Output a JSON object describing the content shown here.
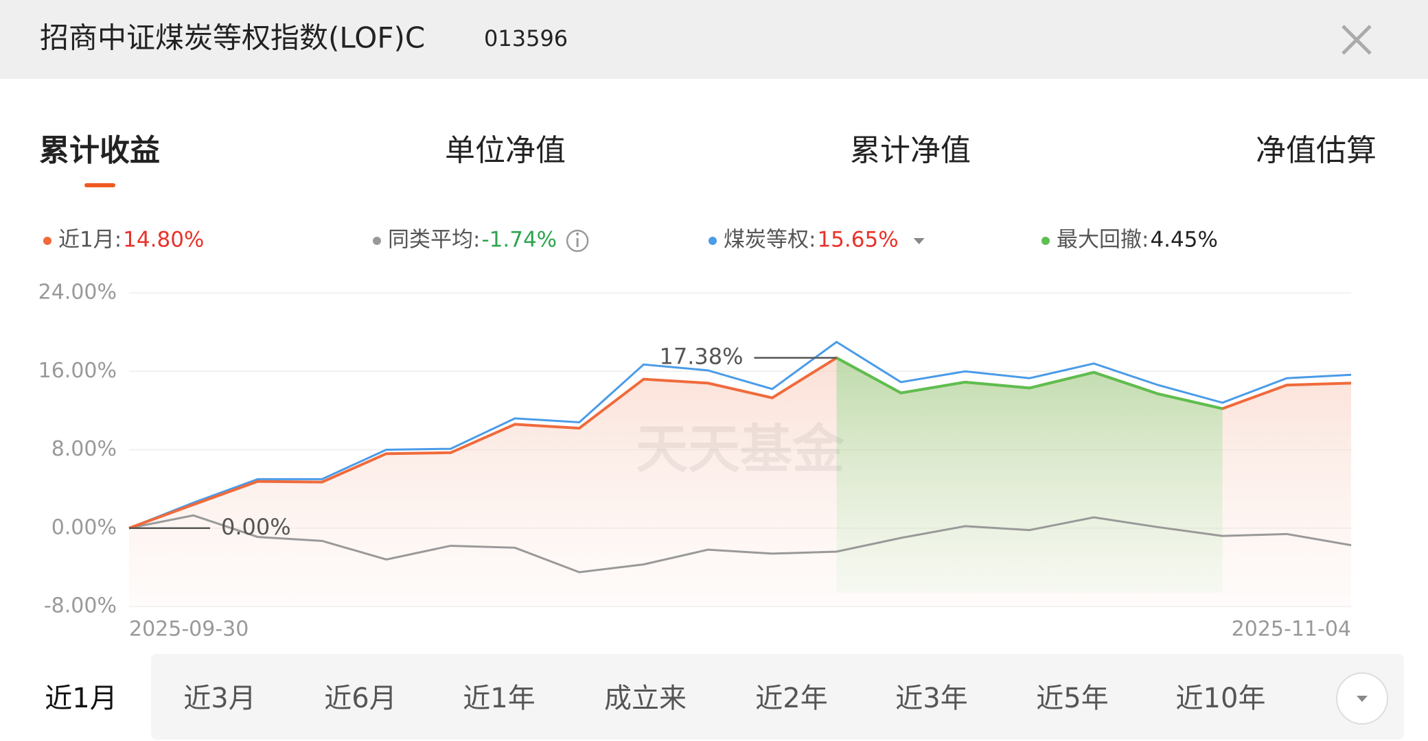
{
  "header": {
    "title": "招商中证煤炭等权指数(LOF)C",
    "code": "013596"
  },
  "tabs": [
    "累计收益",
    "单位净值",
    "累计净值",
    "净值估算"
  ],
  "chart_data": {
    "type": "line",
    "x": [
      "2025-09-30",
      null,
      null,
      null,
      null,
      null,
      null,
      null,
      null,
      null,
      null,
      null,
      null,
      null,
      null,
      null,
      null,
      null,
      null,
      "2025-11-04"
    ],
    "series": [
      {
        "name": "近1月:",
        "summary": "14.80%",
        "summary_color": "#e8322a",
        "color": "#f06a3b",
        "values": [
          0,
          2.4,
          4.77,
          4.7,
          7.6,
          7.7,
          10.6,
          10.2,
          15.2,
          14.8,
          13.3,
          17.38,
          13.8,
          14.9,
          14.3,
          15.9,
          13.7,
          12.2,
          14.6,
          14.8
        ],
        "value_labels": [
          "0.00%",
          null,
          null,
          null,
          null,
          null,
          null,
          null,
          null,
          null,
          null,
          "17.38%",
          null,
          null,
          null,
          null,
          null,
          null,
          null,
          null
        ]
      },
      {
        "name": "同类平均:",
        "summary": "-1.74%",
        "summary_color": "#2ea44f",
        "color": "#999999",
        "values": [
          0,
          1.3,
          -0.9,
          -1.3,
          -3.2,
          -1.8,
          -2.0,
          -4.5,
          -3.7,
          -2.2,
          -2.6,
          -2.4,
          -1.0,
          0.2,
          -0.2,
          1.1,
          0.1,
          -0.8,
          -0.6,
          -1.74
        ]
      },
      {
        "name": "煤炭等权:",
        "summary": "15.65%",
        "summary_color": "#e8322a",
        "color": "#4a9be8",
        "values": [
          0,
          2.6,
          5.0,
          5.0,
          8.0,
          8.1,
          11.2,
          10.8,
          16.7,
          16.1,
          14.2,
          19.0,
          14.9,
          16.0,
          15.3,
          16.8,
          14.6,
          12.8,
          15.3,
          15.65
        ]
      }
    ],
    "drawdown": {
      "name": "最大回撤:",
      "summary": "4.45%",
      "color": "#5cbf4f",
      "from": 11,
      "to": 17
    },
    "ylim": [
      -8,
      24
    ],
    "yticks": [
      {
        "value": -8,
        "label": "-8.00%"
      },
      {
        "value": 0,
        "label": "0.00%"
      },
      {
        "value": 8,
        "label": "8.00%"
      },
      {
        "value": 16,
        "label": "16.00%"
      },
      {
        "value": 24,
        "label": "24.00%"
      }
    ],
    "grid": true,
    "watermark": "天天基金"
  },
  "periods": [
    "近1月",
    "近3月",
    "近6月",
    "近1年",
    "成立来",
    "近2年",
    "近3年",
    "近5年",
    "近10年"
  ]
}
